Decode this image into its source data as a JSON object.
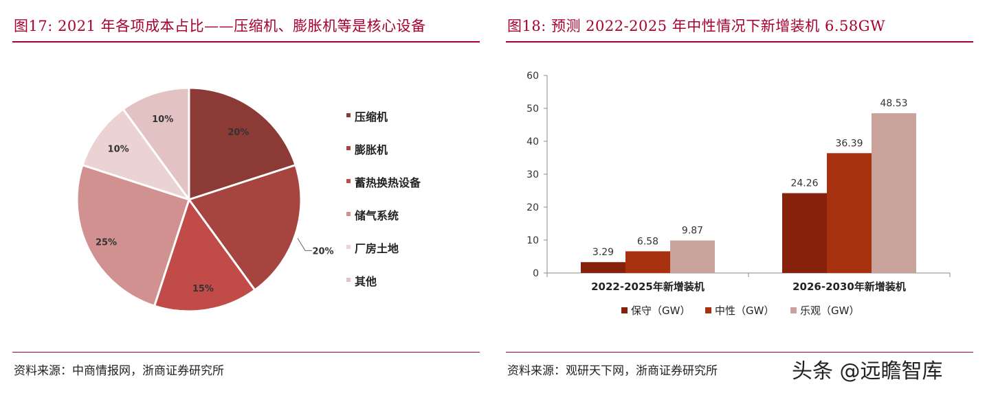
{
  "left": {
    "title": "图17:   2021 年各项成本占比——压缩机、膨胀机等是核心设备",
    "source": "资料来源：中商情报网，浙商证券研究所"
  },
  "right": {
    "title": "图18:   预测 2022-2025 年中性情况下新增装机 6.58GW",
    "source": "资料来源：观研天下网，浙商证券研究所"
  },
  "watermark": "头条 @远瞻智库",
  "colors": {
    "accent": "#a8002d",
    "pie": [
      "#8b3a36",
      "#a64440",
      "#c14b49",
      "#d19190",
      "#ebd3d3",
      "#e3c2c4"
    ],
    "bar": [
      "#86210c",
      "#a8310f",
      "#c9a29b"
    ]
  },
  "chart_data": [
    {
      "type": "pie",
      "slices": [
        {
          "label": "压缩机",
          "value": 20,
          "text": "20%"
        },
        {
          "label": "膨胀机",
          "value": 20,
          "text": "20%"
        },
        {
          "label": "蓄热换热设备",
          "value": 15,
          "text": "15%"
        },
        {
          "label": "储气系统",
          "value": 25,
          "text": "25%"
        },
        {
          "label": "厂房土地",
          "value": 10,
          "text": "10%"
        },
        {
          "label": "其他",
          "value": 10,
          "text": "10%"
        }
      ],
      "legend": "right"
    },
    {
      "type": "bar",
      "categories": [
        "2022-2025年新增装机",
        "2026-2030年新增装机"
      ],
      "series": [
        {
          "name": "保守（GW）",
          "values": [
            3.29,
            24.26
          ]
        },
        {
          "name": "中性（GW）",
          "values": [
            6.58,
            36.39
          ]
        },
        {
          "name": "乐观（GW）",
          "values": [
            9.87,
            48.53
          ]
        }
      ],
      "data_labels": [
        [
          "3.29",
          "24.26"
        ],
        [
          "6.58",
          "36.39"
        ],
        [
          "9.87",
          "48.53"
        ]
      ],
      "ylim": [
        0,
        60
      ],
      "yticks": [
        0,
        10,
        20,
        30,
        40,
        50,
        60
      ],
      "grid": false,
      "legend": "bottom"
    }
  ]
}
